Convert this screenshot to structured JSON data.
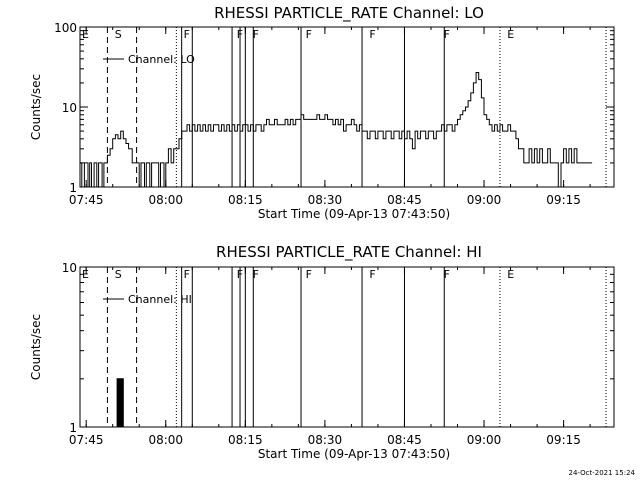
{
  "chart_data": [
    {
      "type": "line",
      "title": "RHESSI PARTICLE_RATE Channel: LO",
      "xlabel": "Start Time (09-Apr-13 07:43:50)",
      "ylabel": "Counts/sec",
      "yscale": "log",
      "ylim": [
        1,
        100
      ],
      "xlim": [
        "07:43:50",
        "09:24:30"
      ],
      "x_ticks": [
        "07:45",
        "08:00",
        "08:15",
        "08:30",
        "08:45",
        "09:00",
        "09:15"
      ],
      "y_ticks": [
        "1",
        "10",
        "100"
      ],
      "legend": {
        "label": "Channel: LO",
        "position": "top-left"
      },
      "flags": [
        {
          "label": "E",
          "time": "07:43:50"
        },
        {
          "label": "S",
          "time": "07:50:00"
        },
        {
          "label": "F",
          "time": "08:03:00"
        },
        {
          "label": "F",
          "time": "08:13:00"
        },
        {
          "label": "F",
          "time": "08:16:00"
        },
        {
          "label": "F",
          "time": "08:26:00"
        },
        {
          "label": "F",
          "time": "08:38:00"
        },
        {
          "label": "F",
          "time": "08:52:00"
        },
        {
          "label": "E",
          "time": "09:04:00"
        }
      ],
      "dashed_lines": [
        "07:49:00",
        "07:54:30"
      ],
      "dotted_lines": [
        "08:02:00",
        "09:03:00",
        "09:23:00"
      ],
      "solid_lines": [
        "08:03:00",
        "08:05:00",
        "08:12:30",
        "08:14:00",
        "08:15:00",
        "08:16:30",
        "08:25:30",
        "08:37:00",
        "08:45:00",
        "08:52:30"
      ],
      "series": [
        {
          "values": [
            [
              "07:43:50",
              2
            ],
            [
              "07:44:10",
              1
            ],
            [
              "07:44:40",
              2
            ],
            [
              "07:45:00",
              2
            ],
            [
              "07:45:20",
              1
            ],
            [
              "07:45:40",
              2
            ],
            [
              "07:46:00",
              1
            ],
            [
              "07:46:30",
              2
            ],
            [
              "07:47:00",
              1
            ],
            [
              "07:47:20",
              2
            ],
            [
              "07:47:40",
              2
            ],
            [
              "07:48:00",
              1
            ],
            [
              "07:48:20",
              2
            ],
            [
              "07:48:40",
              2
            ],
            [
              "07:49:00",
              2.5
            ],
            [
              "07:49:30",
              3
            ],
            [
              "07:50:00",
              4
            ],
            [
              "07:50:30",
              4.5
            ],
            [
              "07:51:00",
              4
            ],
            [
              "07:51:30",
              5
            ],
            [
              "07:52:00",
              4
            ],
            [
              "07:52:30",
              3.5
            ],
            [
              "07:53:00",
              3
            ],
            [
              "07:53:20",
              3
            ],
            [
              "07:53:40",
              2
            ],
            [
              "07:54:00",
              2
            ],
            [
              "07:54:20",
              2
            ],
            [
              "07:54:40",
              2
            ],
            [
              "07:55:00",
              1
            ],
            [
              "07:55:20",
              2
            ],
            [
              "07:55:40",
              2
            ],
            [
              "07:56:00",
              1
            ],
            [
              "07:56:20",
              2
            ],
            [
              "07:56:40",
              2
            ],
            [
              "07:57:00",
              1
            ],
            [
              "07:57:20",
              2
            ],
            [
              "07:57:40",
              2
            ],
            [
              "07:58:00",
              2
            ],
            [
              "07:58:20",
              2
            ],
            [
              "07:58:40",
              1
            ],
            [
              "07:59:00",
              2
            ],
            [
              "07:59:20",
              2
            ],
            [
              "07:59:40",
              1
            ],
            [
              "08:00:00",
              2
            ],
            [
              "08:00:30",
              3
            ],
            [
              "08:01:00",
              2
            ],
            [
              "08:01:30",
              3
            ],
            [
              "08:02:00",
              3
            ],
            [
              "08:02:30",
              4
            ],
            [
              "08:03:00",
              5
            ],
            [
              "08:03:30",
              5
            ],
            [
              "08:04:00",
              6
            ],
            [
              "08:04:30",
              5
            ],
            [
              "08:05:00",
              6
            ],
            [
              "08:05:30",
              5
            ],
            [
              "08:06:00",
              6
            ],
            [
              "08:06:30",
              5
            ],
            [
              "08:07:00",
              6
            ],
            [
              "08:07:30",
              5
            ],
            [
              "08:08:00",
              6
            ],
            [
              "08:08:30",
              5
            ],
            [
              "08:09:00",
              6
            ],
            [
              "08:09:30",
              6
            ],
            [
              "08:10:00",
              5
            ],
            [
              "08:10:30",
              6
            ],
            [
              "08:11:00",
              5
            ],
            [
              "08:11:30",
              6
            ],
            [
              "08:12:00",
              5
            ],
            [
              "08:12:30",
              6
            ],
            [
              "08:13:00",
              5
            ],
            [
              "08:13:30",
              6
            ],
            [
              "08:14:00",
              5
            ],
            [
              "08:14:30",
              6
            ],
            [
              "08:15:00",
              6
            ],
            [
              "08:15:30",
              5
            ],
            [
              "08:16:00",
              6
            ],
            [
              "08:16:30",
              5
            ],
            [
              "08:17:00",
              6
            ],
            [
              "08:17:30",
              6
            ],
            [
              "08:18:00",
              5
            ],
            [
              "08:18:30",
              6
            ],
            [
              "08:19:00",
              7
            ],
            [
              "08:19:30",
              6
            ],
            [
              "08:20:00",
              6
            ],
            [
              "08:20:30",
              7
            ],
            [
              "08:21:00",
              6
            ],
            [
              "08:21:30",
              6
            ],
            [
              "08:22:00",
              6
            ],
            [
              "08:22:30",
              7
            ],
            [
              "08:23:00",
              6
            ],
            [
              "08:23:30",
              7
            ],
            [
              "08:24:00",
              6
            ],
            [
              "08:24:30",
              7
            ],
            [
              "08:25:00",
              7
            ],
            [
              "08:25:30",
              8
            ],
            [
              "08:26:00",
              7
            ],
            [
              "08:26:30",
              7
            ],
            [
              "08:27:00",
              7
            ],
            [
              "08:27:30",
              7
            ],
            [
              "08:28:00",
              7
            ],
            [
              "08:28:30",
              8
            ],
            [
              "08:29:00",
              7
            ],
            [
              "08:29:30",
              7
            ],
            [
              "08:30:00",
              8
            ],
            [
              "08:30:30",
              7
            ],
            [
              "08:31:00",
              7
            ],
            [
              "08:31:30",
              6
            ],
            [
              "08:32:00",
              7
            ],
            [
              "08:32:30",
              6
            ],
            [
              "08:33:00",
              7
            ],
            [
              "08:33:30",
              5
            ],
            [
              "08:34:00",
              6
            ],
            [
              "08:34:30",
              6
            ],
            [
              "08:35:00",
              7
            ],
            [
              "08:35:30",
              6
            ],
            [
              "08:36:00",
              5
            ],
            [
              "08:36:30",
              6
            ],
            [
              "08:37:00",
              5
            ],
            [
              "08:37:30",
              5
            ],
            [
              "08:38:00",
              4
            ],
            [
              "08:38:30",
              5
            ],
            [
              "08:39:00",
              5
            ],
            [
              "08:39:30",
              4
            ],
            [
              "08:40:00",
              5
            ],
            [
              "08:40:30",
              5
            ],
            [
              "08:41:00",
              4
            ],
            [
              "08:41:30",
              5
            ],
            [
              "08:42:00",
              5
            ],
            [
              "08:42:30",
              4
            ],
            [
              "08:43:00",
              5
            ],
            [
              "08:43:30",
              5
            ],
            [
              "08:44:00",
              4
            ],
            [
              "08:44:30",
              5
            ],
            [
              "08:45:00",
              4
            ],
            [
              "08:45:30",
              5
            ],
            [
              "08:46:00",
              4
            ],
            [
              "08:46:30",
              3
            ],
            [
              "08:47:00",
              5
            ],
            [
              "08:47:30",
              4
            ],
            [
              "08:48:00",
              5
            ],
            [
              "08:48:30",
              5
            ],
            [
              "08:49:00",
              4
            ],
            [
              "08:49:30",
              5
            ],
            [
              "08:50:00",
              5
            ],
            [
              "08:50:30",
              4
            ],
            [
              "08:51:00",
              5
            ],
            [
              "08:51:30",
              5
            ],
            [
              "08:52:00",
              6
            ],
            [
              "08:52:30",
              5
            ],
            [
              "08:53:00",
              6
            ],
            [
              "08:53:30",
              6
            ],
            [
              "08:54:00",
              5
            ],
            [
              "08:54:30",
              6
            ],
            [
              "08:55:00",
              7
            ],
            [
              "08:55:30",
              8
            ],
            [
              "08:56:00",
              9
            ],
            [
              "08:56:30",
              10
            ],
            [
              "08:57:00",
              12
            ],
            [
              "08:57:30",
              15
            ],
            [
              "08:58:00",
              20
            ],
            [
              "08:58:30",
              27
            ],
            [
              "08:59:00",
              22
            ],
            [
              "08:59:30",
              13
            ],
            [
              "09:00:00",
              8
            ],
            [
              "09:00:30",
              7
            ],
            [
              "09:01:00",
              6
            ],
            [
              "09:01:30",
              5
            ],
            [
              "09:02:00",
              6
            ],
            [
              "09:02:30",
              5
            ],
            [
              "09:03:00",
              6
            ],
            [
              "09:03:30",
              5
            ],
            [
              "09:04:00",
              5
            ],
            [
              "09:04:30",
              6
            ],
            [
              "09:05:00",
              5
            ],
            [
              "09:05:30",
              5
            ],
            [
              "09:06:00",
              4
            ],
            [
              "09:06:30",
              3
            ],
            [
              "09:07:00",
              3
            ],
            [
              "09:07:30",
              2
            ],
            [
              "09:08:00",
              2
            ],
            [
              "09:08:30",
              3
            ],
            [
              "09:09:00",
              2
            ],
            [
              "09:09:30",
              3
            ],
            [
              "09:10:00",
              2
            ],
            [
              "09:10:30",
              3
            ],
            [
              "09:11:00",
              2
            ],
            [
              "09:11:30",
              2
            ],
            [
              "09:12:00",
              3
            ],
            [
              "09:12:30",
              2
            ],
            [
              "09:13:00",
              2
            ],
            [
              "09:13:30",
              2
            ],
            [
              "09:14:00",
              1
            ],
            [
              "09:14:30",
              2
            ],
            [
              "09:15:00",
              3
            ],
            [
              "09:15:30",
              2
            ],
            [
              "09:16:00",
              3
            ],
            [
              "09:16:30",
              2
            ],
            [
              "09:17:00",
              3
            ],
            [
              "09:17:30",
              2
            ],
            [
              "09:18:00",
              2
            ],
            [
              "09:19:00",
              2
            ],
            [
              "09:20:00",
              2
            ]
          ]
        }
      ]
    },
    {
      "type": "line",
      "title": "RHESSI PARTICLE_RATE Channel: HI",
      "xlabel": "Start Time (09-Apr-13 07:43:50)",
      "ylabel": "Counts/sec",
      "yscale": "log",
      "ylim": [
        1,
        10
      ],
      "xlim": [
        "07:43:50",
        "09:24:30"
      ],
      "x_ticks": [
        "07:45",
        "08:00",
        "08:15",
        "08:30",
        "08:45",
        "09:00",
        "09:15"
      ],
      "y_ticks": [
        "1",
        "10"
      ],
      "legend": {
        "label": "Channel: HI",
        "position": "top-left"
      },
      "flags": [
        {
          "label": "E",
          "time": "07:43:50"
        },
        {
          "label": "S",
          "time": "07:50:00"
        },
        {
          "label": "F",
          "time": "08:03:00"
        },
        {
          "label": "F",
          "time": "08:13:00"
        },
        {
          "label": "F",
          "time": "08:16:00"
        },
        {
          "label": "F",
          "time": "08:26:00"
        },
        {
          "label": "F",
          "time": "08:38:00"
        },
        {
          "label": "F",
          "time": "08:52:00"
        },
        {
          "label": "E",
          "time": "09:04:00"
        }
      ],
      "dashed_lines": [
        "07:49:00",
        "07:54:30"
      ],
      "dotted_lines": [
        "08:02:00",
        "09:03:00",
        "09:23:00"
      ],
      "solid_lines": [
        "08:03:00",
        "08:05:00",
        "08:12:30",
        "08:14:00",
        "08:15:00",
        "08:16:30",
        "08:25:30",
        "08:37:00",
        "08:45:00",
        "08:52:30"
      ],
      "series": [
        {
          "values": [
            [
              "07:50:40",
              1
            ],
            [
              "07:50:50",
              2
            ],
            [
              "07:51:00",
              1
            ],
            [
              "07:51:10",
              2
            ],
            [
              "07:51:20",
              1
            ],
            [
              "07:51:30",
              2
            ],
            [
              "07:51:40",
              1
            ],
            [
              "07:51:50",
              2
            ],
            [
              "07:52:00",
              1
            ]
          ]
        }
      ]
    }
  ],
  "footer": {
    "timestamp": "24-Oct-2021 15:24"
  }
}
